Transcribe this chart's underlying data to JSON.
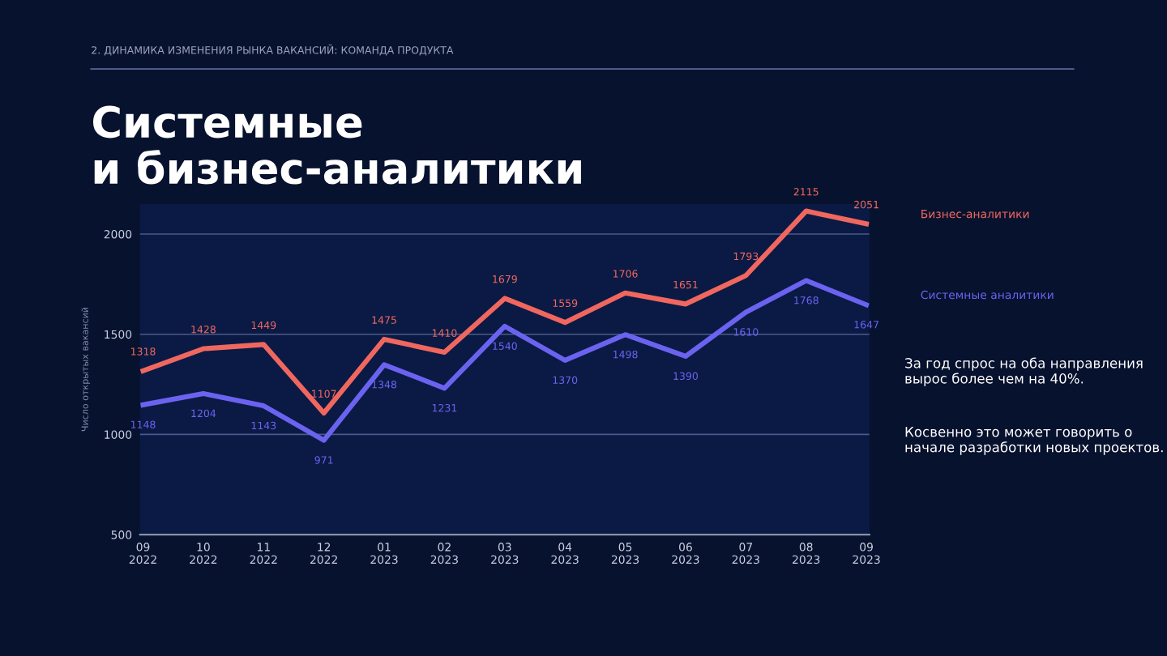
{
  "chart_data": {
    "type": "line",
    "title": "Системные\nи бизнес-аналитики",
    "subtitle": "2. ДИНАМИКА ИЗМЕНЕНИЯ РЫНКА ВАКАНСИЙ: КОМАНДА ПРОДУКТА",
    "ylabel": "Число открытых вакансий",
    "categories": [
      "09\n2022",
      "10\n2022",
      "11\n2022",
      "12\n2022",
      "01\n2023",
      "02\n2023",
      "03\n2023",
      "04\n2023",
      "05\n2023",
      "06\n2023",
      "07\n2023",
      "08\n2023",
      "09\n2023"
    ],
    "series": [
      {
        "name": "Бизнес-аналитики",
        "color": "#f0675f",
        "values": [
          1318,
          1428,
          1449,
          1107,
          1475,
          1410,
          1679,
          1559,
          1706,
          1651,
          1793,
          2115,
          2051
        ]
      },
      {
        "name": "Системные аналитики",
        "color": "#6b63f0",
        "values": [
          1148,
          1204,
          1143,
          971,
          1348,
          1231,
          1540,
          1370,
          1498,
          1390,
          1610,
          1768,
          1647
        ]
      }
    ],
    "ylim": [
      500,
      2150
    ],
    "yticks": [
      500,
      1000,
      1500,
      2000
    ],
    "grid": "y",
    "data_labels": true,
    "legend": false,
    "marker": "none",
    "line_style": "solid",
    "annotations": [
      "За год спрос на оба направления вырос более чем на 40%.",
      "Косвенно это может говорить о начале разработки новых проектов."
    ]
  }
}
